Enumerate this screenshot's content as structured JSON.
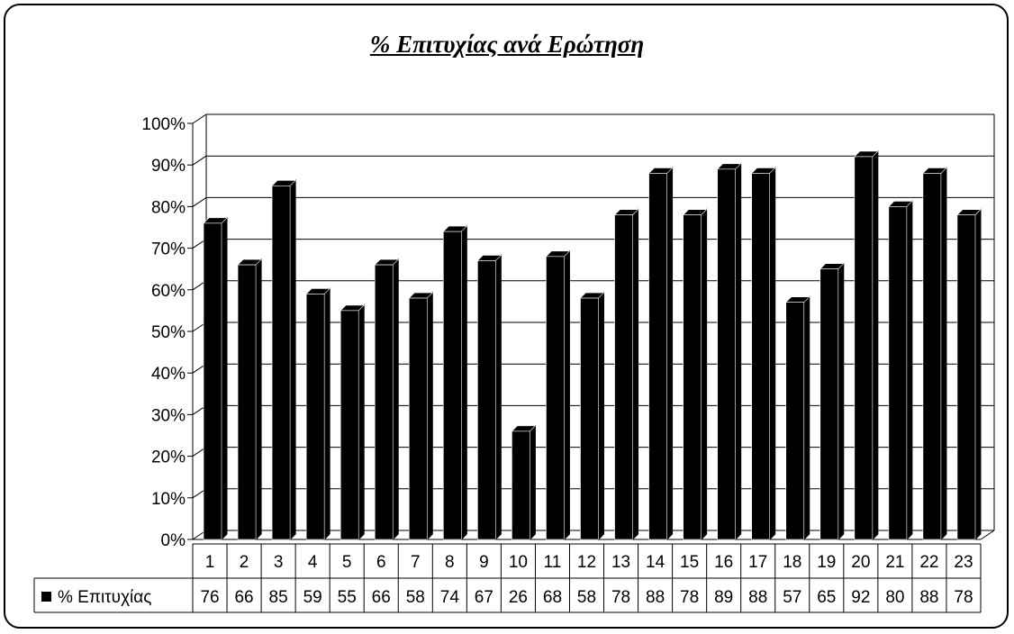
{
  "chart_data": {
    "type": "bar",
    "title": "% Επιτυχίας ανά Ερώτηση",
    "categories": [
      "1",
      "2",
      "3",
      "4",
      "5",
      "6",
      "7",
      "8",
      "9",
      "10",
      "11",
      "12",
      "13",
      "14",
      "15",
      "16",
      "17",
      "18",
      "19",
      "20",
      "21",
      "22",
      "23"
    ],
    "series": [
      {
        "name": "% Επιτυχίας",
        "values": [
          76,
          66,
          85,
          59,
          55,
          66,
          58,
          74,
          67,
          26,
          68,
          58,
          78,
          88,
          78,
          89,
          88,
          57,
          65,
          92,
          80,
          88,
          78
        ]
      }
    ],
    "yticks": [
      "0%",
      "10%",
      "20%",
      "30%",
      "40%",
      "50%",
      "60%",
      "70%",
      "80%",
      "90%",
      "100%"
    ],
    "ylim": [
      0,
      100
    ],
    "grid": true,
    "legend": "data-table",
    "bar_color": "#000000"
  }
}
